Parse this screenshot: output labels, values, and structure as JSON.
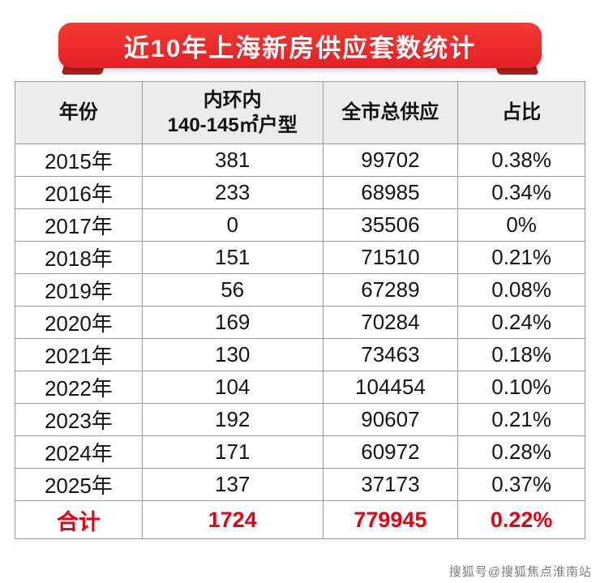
{
  "banner": {
    "title": "近10年上海新房供应套数统计",
    "bg_color": "#e42025",
    "fold_color": "#b01d1d"
  },
  "table": {
    "header": {
      "col1": "年份",
      "col2_line1": "内环内",
      "col2_line2": "140-145㎡户型",
      "col3": "全市总供应",
      "col4": "占比"
    },
    "total": {
      "label": "合计",
      "col2": "1724",
      "col3": "779945",
      "col4": "0.22%"
    }
  },
  "chart_data": {
    "type": "table",
    "title": "近10年上海新房供应套数统计",
    "columns": [
      "年份",
      "内环内 140-145㎡户型",
      "全市总供应",
      "占比"
    ],
    "rows": [
      [
        "2015年",
        "381",
        "99702",
        "0.38%"
      ],
      [
        "2016年",
        "233",
        "68985",
        "0.34%"
      ],
      [
        "2017年",
        "0",
        "35506",
        "0%"
      ],
      [
        "2018年",
        "151",
        "71510",
        "0.21%"
      ],
      [
        "2019年",
        "56",
        "67289",
        "0.08%"
      ],
      [
        "2020年",
        "169",
        "70284",
        "0.24%"
      ],
      [
        "2021年",
        "130",
        "73463",
        "0.18%"
      ],
      [
        "2022年",
        "104",
        "104454",
        "0.10%"
      ],
      [
        "2023年",
        "192",
        "90607",
        "0.21%"
      ],
      [
        "2024年",
        "171",
        "60972",
        "0.28%"
      ],
      [
        "2025年",
        "137",
        "37173",
        "0.37%"
      ]
    ],
    "total_row": [
      "合计",
      "1724",
      "779945",
      "0.22%"
    ],
    "accent_color": "#e60012",
    "header_bg": "#ececec"
  },
  "watermark": "搜狐号@搜狐焦点淮南站"
}
